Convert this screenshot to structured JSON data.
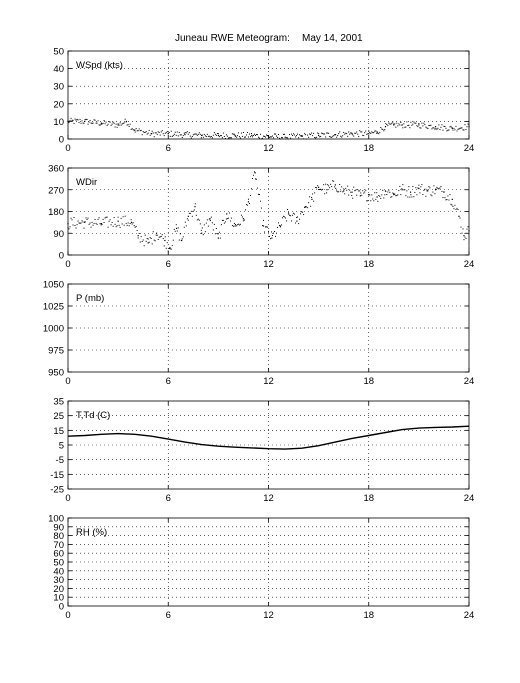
{
  "figure": {
    "title": "Juneau RWE Meteogram:",
    "date": "May 14, 2001"
  },
  "chart_data": [
    {
      "type": "scatter",
      "panel_label": "WSpd (kts)",
      "xlim": [
        0,
        24
      ],
      "ylim": [
        0,
        50
      ],
      "xticks": [
        0,
        6,
        12,
        18,
        24
      ],
      "yticks": [
        0,
        10,
        20,
        30,
        40,
        50
      ],
      "grid": true,
      "series": [
        {
          "color": "#000000",
          "x": [
            0,
            1,
            2,
            3,
            3.5,
            4,
            5,
            6,
            7,
            8,
            9,
            10,
            11,
            12,
            13,
            14,
            15,
            16,
            17,
            18,
            18.5,
            19,
            19.5,
            20,
            21,
            22,
            23,
            24
          ],
          "y": [
            10,
            10,
            9,
            8,
            10,
            5,
            3,
            3,
            2.5,
            2,
            2,
            2,
            2,
            1.5,
            1,
            1.5,
            2,
            2.5,
            3,
            3,
            4,
            7,
            8,
            8,
            8,
            7,
            6,
            7
          ]
        }
      ]
    },
    {
      "type": "scatter",
      "panel_label": "WDir",
      "xlim": [
        0,
        24
      ],
      "ylim": [
        0,
        360
      ],
      "xticks": [
        0,
        6,
        12,
        18,
        24
      ],
      "yticks": [
        0,
        90,
        180,
        270,
        360
      ],
      "grid": true,
      "series": [
        {
          "color": "#000000",
          "x": [
            0,
            1,
            2,
            3,
            3.8,
            4.2,
            4.8,
            5.3,
            5.8,
            6.1,
            6.5,
            6.8,
            7.2,
            7.6,
            8,
            8.5,
            9,
            9.5,
            10,
            10.5,
            10.8,
            11.2,
            11.7,
            12.2,
            12.7,
            13.2,
            13.7,
            14.2,
            14.6,
            15,
            15.5,
            16,
            16.5,
            17,
            17.5,
            18,
            18.5,
            19,
            19.5,
            20,
            20.5,
            21,
            21.5,
            22,
            22.5,
            23,
            23.4,
            23.7,
            24
          ],
          "y": [
            130,
            135,
            130,
            140,
            135,
            80,
            50,
            90,
            60,
            30,
            110,
            60,
            160,
            200,
            90,
            150,
            70,
            170,
            120,
            150,
            220,
            340,
            120,
            70,
            120,
            170,
            140,
            200,
            230,
            280,
            270,
            290,
            265,
            260,
            245,
            250,
            240,
            265,
            250,
            270,
            260,
            275,
            265,
            270,
            260,
            230,
            160,
            80,
            100
          ]
        }
      ]
    },
    {
      "type": "line",
      "panel_label": "P (mb)",
      "xlim": [
        0,
        24
      ],
      "ylim": [
        950,
        1050
      ],
      "xticks": [
        0,
        6,
        12,
        18,
        24
      ],
      "yticks": [
        950,
        975,
        1000,
        1025,
        1050
      ],
      "grid": true,
      "series": []
    },
    {
      "type": "line",
      "panel_label": "T,Td (C)",
      "xlim": [
        0,
        24
      ],
      "ylim": [
        -25,
        35
      ],
      "xticks": [
        0,
        6,
        12,
        18,
        24
      ],
      "yticks": [
        -25,
        -15,
        -5,
        5,
        15,
        25,
        35
      ],
      "grid": true,
      "series": [
        {
          "color": "#000000",
          "x": [
            0,
            1,
            2,
            3,
            4,
            5,
            6,
            7,
            8,
            9,
            10,
            11,
            12,
            13,
            14,
            15,
            16,
            17,
            18,
            19,
            20,
            21,
            22,
            23,
            24
          ],
          "y": [
            11,
            11.5,
            12.3,
            12.8,
            12.3,
            11,
            9,
            7,
            5.3,
            4.2,
            3.5,
            3,
            2.5,
            2.2,
            2.8,
            4.5,
            7,
            9.5,
            11.5,
            13.5,
            15.5,
            16.5,
            17,
            17.3,
            17.8
          ]
        }
      ]
    },
    {
      "type": "line",
      "panel_label": "RH (%)",
      "xlim": [
        0,
        24
      ],
      "ylim": [
        0,
        100
      ],
      "xticks": [
        0,
        6,
        12,
        18,
        24
      ],
      "yticks": [
        0,
        10,
        20,
        30,
        40,
        50,
        60,
        70,
        80,
        90,
        100
      ],
      "grid": true,
      "series": []
    }
  ]
}
